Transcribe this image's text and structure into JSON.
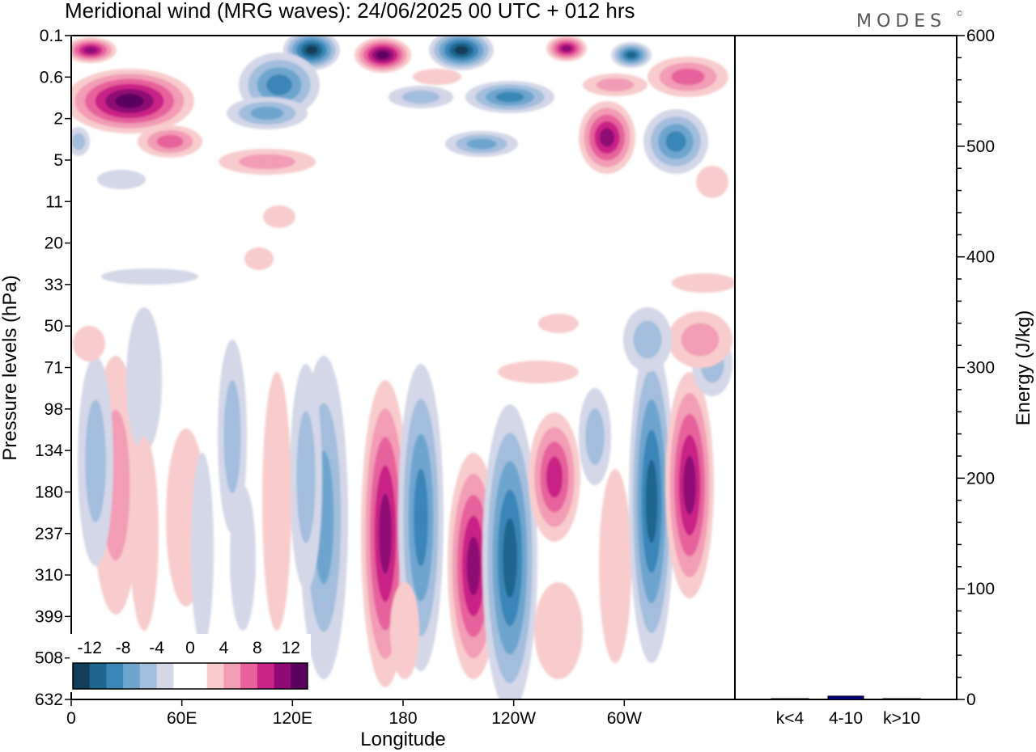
{
  "title": "Meridional wind (MRG waves):  24/06/2025  00 UTC  + 012 hrs",
  "logo": "MODES",
  "logo_mark": "©",
  "chart_data": [
    {
      "type": "heatmap",
      "xlabel": "Longitude",
      "ylabel": "Pressure levels (hPa)",
      "x_ticks": [
        "0",
        "60E",
        "120E",
        "180",
        "120W",
        "60W"
      ],
      "x_tick_values": [
        0,
        60,
        120,
        180,
        240,
        300
      ],
      "xlim": [
        0,
        360
      ],
      "y_ticks": [
        "0.1",
        "0.6",
        "2",
        "5",
        "11",
        "20",
        "33",
        "50",
        "71",
        "98",
        "134",
        "180",
        "237",
        "310",
        "399",
        "508",
        "632"
      ],
      "y_order": "top-to-bottom",
      "colorbar": {
        "labels": [
          "-12",
          "-8",
          "-4",
          "0",
          "4",
          "8",
          "12"
        ],
        "colors": [
          "#143d59",
          "#1d6690",
          "#3a86b8",
          "#6ea5cf",
          "#a3bedc",
          "#d3d7e8",
          "#ffffff",
          "#ffffff",
          "#f8cccc",
          "#f29cb5",
          "#e7629c",
          "#c92486",
          "#8e0a75",
          "#5a005e"
        ]
      },
      "grid": false
    },
    {
      "type": "bar",
      "ylabel": "Energy (J/kg)",
      "ylim": [
        0,
        600
      ],
      "y_ticks": [
        "0",
        "100",
        "200",
        "300",
        "400",
        "500",
        "600"
      ],
      "categories": [
        "k<4",
        "4-10",
        "k>10"
      ],
      "values": [
        0.5,
        3,
        0.5
      ],
      "bar_colors": [
        "#333366",
        "#00008b",
        "#333366"
      ],
      "grid": false
    }
  ]
}
